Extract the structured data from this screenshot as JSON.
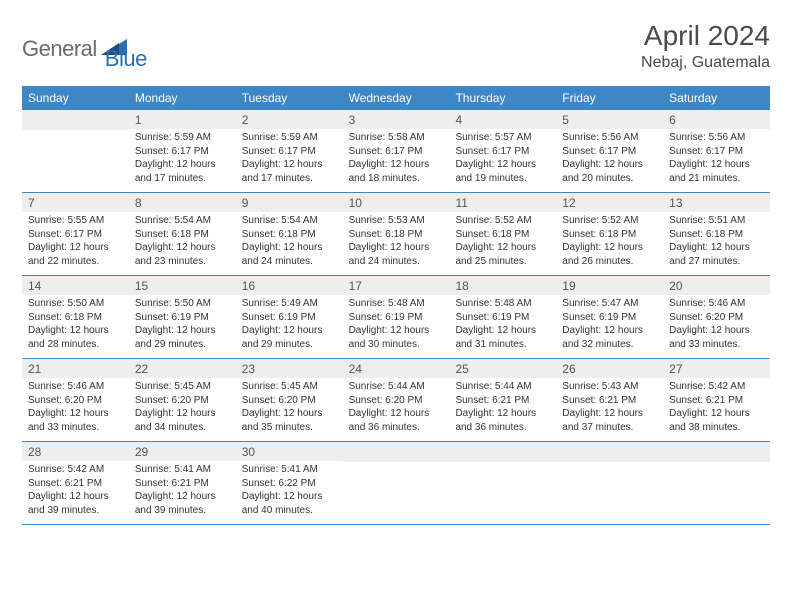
{
  "brand": {
    "gray": "General",
    "blue": "Blue"
  },
  "title": "April 2024",
  "location": "Nebaj, Guatemala",
  "colors": {
    "header_bg": "#3d87c7",
    "header_text": "#ffffff",
    "daynum_bg": "#eeeeee",
    "border": "#3d87c7",
    "text": "#333333",
    "logo_gray": "#6b6b6b",
    "logo_blue": "#2b6fb3"
  },
  "typography": {
    "title_fontsize": 28,
    "location_fontsize": 16,
    "header_fontsize": 12,
    "cell_fontsize": 10
  },
  "day_headers": [
    "Sunday",
    "Monday",
    "Tuesday",
    "Wednesday",
    "Thursday",
    "Friday",
    "Saturday"
  ],
  "weeks": [
    [
      {
        "num": "",
        "sunrise": "",
        "sunset": "",
        "daylight": ""
      },
      {
        "num": "1",
        "sunrise": "Sunrise: 5:59 AM",
        "sunset": "Sunset: 6:17 PM",
        "daylight": "Daylight: 12 hours and 17 minutes."
      },
      {
        "num": "2",
        "sunrise": "Sunrise: 5:59 AM",
        "sunset": "Sunset: 6:17 PM",
        "daylight": "Daylight: 12 hours and 17 minutes."
      },
      {
        "num": "3",
        "sunrise": "Sunrise: 5:58 AM",
        "sunset": "Sunset: 6:17 PM",
        "daylight": "Daylight: 12 hours and 18 minutes."
      },
      {
        "num": "4",
        "sunrise": "Sunrise: 5:57 AM",
        "sunset": "Sunset: 6:17 PM",
        "daylight": "Daylight: 12 hours and 19 minutes."
      },
      {
        "num": "5",
        "sunrise": "Sunrise: 5:56 AM",
        "sunset": "Sunset: 6:17 PM",
        "daylight": "Daylight: 12 hours and 20 minutes."
      },
      {
        "num": "6",
        "sunrise": "Sunrise: 5:56 AM",
        "sunset": "Sunset: 6:17 PM",
        "daylight": "Daylight: 12 hours and 21 minutes."
      }
    ],
    [
      {
        "num": "7",
        "sunrise": "Sunrise: 5:55 AM",
        "sunset": "Sunset: 6:17 PM",
        "daylight": "Daylight: 12 hours and 22 minutes."
      },
      {
        "num": "8",
        "sunrise": "Sunrise: 5:54 AM",
        "sunset": "Sunset: 6:18 PM",
        "daylight": "Daylight: 12 hours and 23 minutes."
      },
      {
        "num": "9",
        "sunrise": "Sunrise: 5:54 AM",
        "sunset": "Sunset: 6:18 PM",
        "daylight": "Daylight: 12 hours and 24 minutes."
      },
      {
        "num": "10",
        "sunrise": "Sunrise: 5:53 AM",
        "sunset": "Sunset: 6:18 PM",
        "daylight": "Daylight: 12 hours and 24 minutes."
      },
      {
        "num": "11",
        "sunrise": "Sunrise: 5:52 AM",
        "sunset": "Sunset: 6:18 PM",
        "daylight": "Daylight: 12 hours and 25 minutes."
      },
      {
        "num": "12",
        "sunrise": "Sunrise: 5:52 AM",
        "sunset": "Sunset: 6:18 PM",
        "daylight": "Daylight: 12 hours and 26 minutes."
      },
      {
        "num": "13",
        "sunrise": "Sunrise: 5:51 AM",
        "sunset": "Sunset: 6:18 PM",
        "daylight": "Daylight: 12 hours and 27 minutes."
      }
    ],
    [
      {
        "num": "14",
        "sunrise": "Sunrise: 5:50 AM",
        "sunset": "Sunset: 6:18 PM",
        "daylight": "Daylight: 12 hours and 28 minutes."
      },
      {
        "num": "15",
        "sunrise": "Sunrise: 5:50 AM",
        "sunset": "Sunset: 6:19 PM",
        "daylight": "Daylight: 12 hours and 29 minutes."
      },
      {
        "num": "16",
        "sunrise": "Sunrise: 5:49 AM",
        "sunset": "Sunset: 6:19 PM",
        "daylight": "Daylight: 12 hours and 29 minutes."
      },
      {
        "num": "17",
        "sunrise": "Sunrise: 5:48 AM",
        "sunset": "Sunset: 6:19 PM",
        "daylight": "Daylight: 12 hours and 30 minutes."
      },
      {
        "num": "18",
        "sunrise": "Sunrise: 5:48 AM",
        "sunset": "Sunset: 6:19 PM",
        "daylight": "Daylight: 12 hours and 31 minutes."
      },
      {
        "num": "19",
        "sunrise": "Sunrise: 5:47 AM",
        "sunset": "Sunset: 6:19 PM",
        "daylight": "Daylight: 12 hours and 32 minutes."
      },
      {
        "num": "20",
        "sunrise": "Sunrise: 5:46 AM",
        "sunset": "Sunset: 6:20 PM",
        "daylight": "Daylight: 12 hours and 33 minutes."
      }
    ],
    [
      {
        "num": "21",
        "sunrise": "Sunrise: 5:46 AM",
        "sunset": "Sunset: 6:20 PM",
        "daylight": "Daylight: 12 hours and 33 minutes."
      },
      {
        "num": "22",
        "sunrise": "Sunrise: 5:45 AM",
        "sunset": "Sunset: 6:20 PM",
        "daylight": "Daylight: 12 hours and 34 minutes."
      },
      {
        "num": "23",
        "sunrise": "Sunrise: 5:45 AM",
        "sunset": "Sunset: 6:20 PM",
        "daylight": "Daylight: 12 hours and 35 minutes."
      },
      {
        "num": "24",
        "sunrise": "Sunrise: 5:44 AM",
        "sunset": "Sunset: 6:20 PM",
        "daylight": "Daylight: 12 hours and 36 minutes."
      },
      {
        "num": "25",
        "sunrise": "Sunrise: 5:44 AM",
        "sunset": "Sunset: 6:21 PM",
        "daylight": "Daylight: 12 hours and 36 minutes."
      },
      {
        "num": "26",
        "sunrise": "Sunrise: 5:43 AM",
        "sunset": "Sunset: 6:21 PM",
        "daylight": "Daylight: 12 hours and 37 minutes."
      },
      {
        "num": "27",
        "sunrise": "Sunrise: 5:42 AM",
        "sunset": "Sunset: 6:21 PM",
        "daylight": "Daylight: 12 hours and 38 minutes."
      }
    ],
    [
      {
        "num": "28",
        "sunrise": "Sunrise: 5:42 AM",
        "sunset": "Sunset: 6:21 PM",
        "daylight": "Daylight: 12 hours and 39 minutes."
      },
      {
        "num": "29",
        "sunrise": "Sunrise: 5:41 AM",
        "sunset": "Sunset: 6:21 PM",
        "daylight": "Daylight: 12 hours and 39 minutes."
      },
      {
        "num": "30",
        "sunrise": "Sunrise: 5:41 AM",
        "sunset": "Sunset: 6:22 PM",
        "daylight": "Daylight: 12 hours and 40 minutes."
      },
      {
        "num": "",
        "sunrise": "",
        "sunset": "",
        "daylight": ""
      },
      {
        "num": "",
        "sunrise": "",
        "sunset": "",
        "daylight": ""
      },
      {
        "num": "",
        "sunrise": "",
        "sunset": "",
        "daylight": ""
      },
      {
        "num": "",
        "sunrise": "",
        "sunset": "",
        "daylight": ""
      }
    ]
  ]
}
